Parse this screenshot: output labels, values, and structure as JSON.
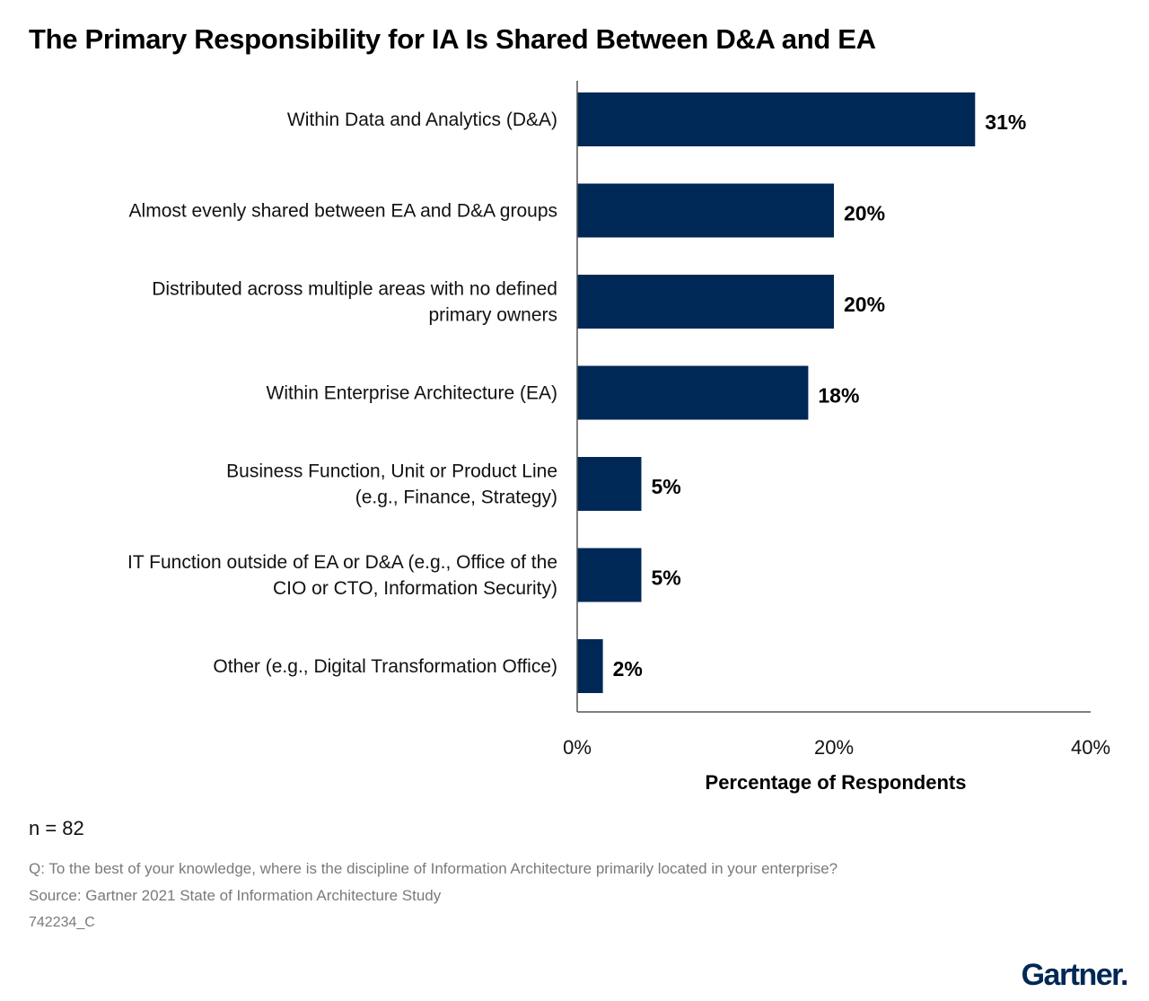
{
  "colors": {
    "bar": "#002856",
    "axis": "#555555",
    "logo": "#002856"
  },
  "chart_data": {
    "type": "bar",
    "orientation": "horizontal",
    "title": "The Primary Responsibility for IA Is Shared Between D&A and EA",
    "xlabel": "Percentage of Respondents",
    "ylabel": "",
    "xlim": [
      0,
      40
    ],
    "xticks": [
      "0%",
      "20%",
      "40%"
    ],
    "xtick_values": [
      0,
      20,
      40
    ],
    "grid": false,
    "categories": [
      [
        "Within Data and Analytics (D&A)"
      ],
      [
        "Almost evenly shared between EA and D&A groups"
      ],
      [
        "Distributed across multiple areas with no defined",
        "primary owners"
      ],
      [
        "Within Enterprise Architecture (EA)"
      ],
      [
        "Business Function, Unit or Product Line",
        "(e.g., Finance, Strategy)"
      ],
      [
        "IT Function outside of EA or D&A (e.g., Office of the",
        "CIO or CTO, Information Security)"
      ],
      [
        "Other (e.g., Digital Transformation Office)"
      ]
    ],
    "values": [
      31,
      20,
      20,
      18,
      5,
      5,
      2
    ],
    "value_labels": [
      "31%",
      "20%",
      "20%",
      "18%",
      "5%",
      "5%",
      "2%"
    ]
  },
  "notes": {
    "n": "n = 82",
    "question": "Q: To the best of your knowledge, where is the discipline of Information Architecture primarily located in your enterprise?",
    "source": "Source: Gartner 2021 State of Information Architecture Study",
    "doc_id": "742234_C"
  },
  "logo": {
    "text": "Gartner",
    "dot": "."
  }
}
